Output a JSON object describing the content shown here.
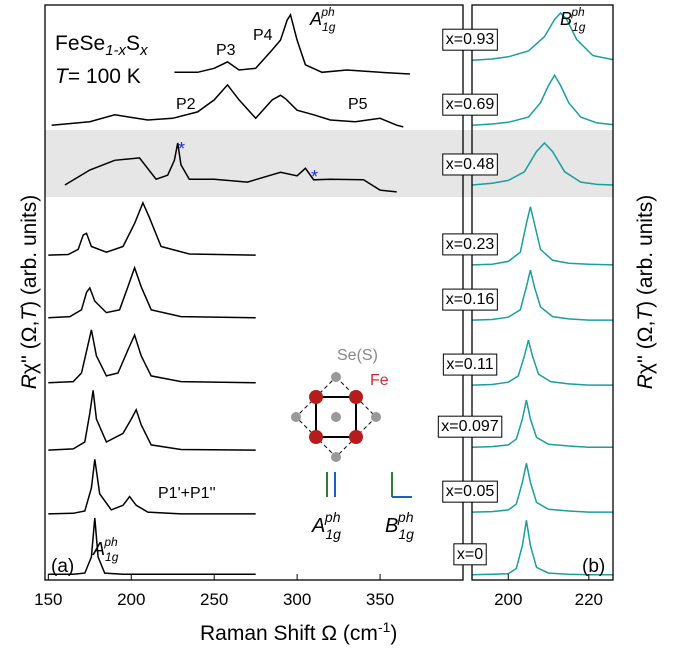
{
  "chart_data": [
    {
      "type": "line",
      "color": "#000000",
      "xlim": [
        148,
        400
      ],
      "xticks": [
        150,
        200,
        250,
        300,
        350
      ],
      "ylim": [
        0,
        10
      ],
      "series": [
        {
          "x": [
            150,
            165,
            172,
            176,
            178,
            180,
            184,
            195,
            210,
            230,
            250,
            275
          ],
          "values": [
            0.1,
            0.1,
            0.12,
            0.4,
            1.08,
            0.4,
            0.12,
            0.1,
            0.1,
            0.1,
            0.1,
            0.1
          ]
        },
        {
          "x": [
            150,
            165,
            172,
            176,
            178,
            181,
            188,
            195,
            199,
            203,
            210,
            230,
            275
          ],
          "values": [
            1.15,
            1.16,
            1.2,
            1.6,
            2.1,
            1.5,
            1.22,
            1.3,
            1.45,
            1.3,
            1.18,
            1.15,
            1.15
          ]
        },
        {
          "x": [
            150,
            165,
            172,
            175,
            177,
            179,
            185,
            195,
            200,
            203,
            206,
            212,
            230,
            275
          ],
          "values": [
            2.26,
            2.28,
            2.4,
            2.9,
            3.3,
            2.8,
            2.4,
            2.55,
            2.8,
            2.96,
            2.7,
            2.35,
            2.27,
            2.26
          ]
        },
        {
          "x": [
            150,
            165,
            170,
            174,
            176,
            179,
            185,
            192,
            198,
            202,
            206,
            212,
            230,
            275
          ],
          "values": [
            3.43,
            3.45,
            3.6,
            4.1,
            4.35,
            3.9,
            3.55,
            3.6,
            4.0,
            4.26,
            3.9,
            3.55,
            3.45,
            3.43
          ]
        },
        {
          "x": [
            150,
            163,
            170,
            173,
            175,
            178,
            185,
            193,
            198,
            202,
            206,
            212,
            230,
            275
          ],
          "values": [
            4.56,
            4.58,
            4.7,
            5.0,
            5.08,
            4.85,
            4.65,
            4.7,
            5.1,
            5.43,
            5.1,
            4.7,
            4.58,
            4.56
          ]
        },
        {
          "x": [
            150,
            162,
            168,
            171,
            173,
            176,
            185,
            195,
            202,
            207,
            211,
            218,
            235,
            275
          ],
          "values": [
            5.65,
            5.66,
            5.75,
            6.0,
            6.03,
            5.8,
            5.7,
            5.8,
            6.2,
            6.56,
            6.3,
            5.8,
            5.67,
            5.65
          ]
        },
        {
          "x": [
            160,
            175,
            190,
            205,
            215,
            222,
            226,
            228,
            230,
            235,
            250,
            270,
            290,
            300,
            305,
            310,
            320,
            340,
            350,
            360
          ],
          "values": [
            6.87,
            7.13,
            7.3,
            7.34,
            6.97,
            7.04,
            7.3,
            7.6,
            7.22,
            6.97,
            6.97,
            6.92,
            7.09,
            7.03,
            7.16,
            6.96,
            6.97,
            6.96,
            6.78,
            6.75
          ]
        },
        {
          "x": [
            152,
            175,
            190,
            210,
            225,
            240,
            250,
            258,
            265,
            275,
            285,
            290,
            293,
            300,
            310,
            320,
            335,
            350,
            360,
            364
          ],
          "values": [
            7.91,
            7.97,
            8.09,
            8.0,
            8.03,
            8.14,
            8.35,
            8.61,
            8.35,
            8.03,
            8.35,
            8.43,
            8.37,
            8.17,
            8.09,
            8.0,
            7.97,
            8.03,
            7.91,
            7.88
          ]
        },
        {
          "x": [
            226,
            240,
            250,
            258,
            265,
            275,
            285,
            290,
            294,
            296,
            300,
            305,
            315,
            330,
            350,
            368
          ],
          "values": [
            8.83,
            8.83,
            8.9,
            9.01,
            8.87,
            8.9,
            9.22,
            9.39,
            9.74,
            9.83,
            9.39,
            8.96,
            8.83,
            8.87,
            8.83,
            8.8
          ]
        }
      ]
    },
    {
      "type": "line",
      "color": "#1a9e9e",
      "xlim": [
        191,
        226
      ],
      "xticks": [
        200,
        220
      ],
      "ylim": [
        0,
        10
      ],
      "series": [
        {
          "name": "x=0",
          "x": [
            191,
            196,
            200,
            202,
            203.5,
            204.5,
            205.5,
            207,
            210,
            215,
            220,
            226
          ],
          "values": [
            0.09,
            0.1,
            0.11,
            0.2,
            0.6,
            1.04,
            0.6,
            0.22,
            0.12,
            0.1,
            0.09,
            0.09
          ]
        },
        {
          "name": "x=0.05",
          "x": [
            191,
            196,
            200,
            202,
            203.5,
            204.5,
            205.5,
            207,
            210,
            215,
            220,
            226
          ],
          "values": [
            1.18,
            1.19,
            1.22,
            1.32,
            1.7,
            2.03,
            1.7,
            1.35,
            1.23,
            1.2,
            1.18,
            1.18
          ]
        },
        {
          "name": "x=0.097",
          "x": [
            191,
            196,
            200,
            202,
            203.5,
            204.5,
            205.5,
            207,
            210,
            215,
            220,
            226
          ],
          "values": [
            2.31,
            2.32,
            2.35,
            2.45,
            2.8,
            3.13,
            2.8,
            2.48,
            2.36,
            2.33,
            2.31,
            2.31
          ]
        },
        {
          "name": "x=0.11",
          "x": [
            191,
            196,
            200,
            202.5,
            204,
            205,
            206,
            207.5,
            210.5,
            215,
            220,
            226
          ],
          "values": [
            3.39,
            3.4,
            3.44,
            3.55,
            3.9,
            4.17,
            3.9,
            3.58,
            3.45,
            3.41,
            3.39,
            3.39
          ]
        },
        {
          "name": "x=0.16",
          "x": [
            191,
            196,
            200,
            203,
            204.5,
            205.5,
            206.5,
            208,
            211,
            215,
            220,
            226
          ],
          "values": [
            4.52,
            4.53,
            4.57,
            4.7,
            5.1,
            5.39,
            5.1,
            4.75,
            4.58,
            4.54,
            4.52,
            4.52
          ]
        },
        {
          "name": "x=0.23",
          "x": [
            191,
            196,
            200,
            203,
            204.5,
            205.5,
            206.5,
            208,
            211,
            215,
            220,
            226
          ],
          "values": [
            5.48,
            5.49,
            5.54,
            5.7,
            6.2,
            6.49,
            6.2,
            5.75,
            5.56,
            5.51,
            5.49,
            5.48
          ]
        },
        {
          "name": "x=0.48",
          "x": [
            191,
            196,
            200,
            204,
            207,
            209,
            211,
            214,
            218,
            222,
            226
          ],
          "values": [
            6.87,
            6.9,
            6.95,
            7.1,
            7.45,
            7.6,
            7.45,
            7.1,
            6.92,
            6.88,
            6.87
          ]
        },
        {
          "name": "x=0.69",
          "x": [
            191,
            196,
            200,
            205,
            208,
            210,
            211.5,
            213,
            215,
            218,
            222,
            226
          ],
          "values": [
            7.91,
            7.93,
            7.96,
            8.05,
            8.3,
            8.6,
            8.78,
            8.6,
            8.3,
            8.05,
            7.95,
            7.92
          ]
        },
        {
          "name": "x=0.93",
          "x": [
            191,
            196,
            200,
            205,
            209,
            211.5,
            213,
            214.5,
            217,
            221,
            226
          ],
          "values": [
            9.04,
            9.06,
            9.1,
            9.2,
            9.45,
            9.75,
            9.86,
            9.75,
            9.4,
            9.12,
            9.05
          ]
        }
      ]
    }
  ],
  "annotations": {
    "formula": [
      "FeSe",
      "1-x",
      "S",
      "x"
    ],
    "temperature": [
      "T",
      "= 100 K"
    ],
    "mode_a": [
      "A",
      "1g",
      "ph"
    ],
    "mode_b": [
      "B",
      "1g",
      "ph"
    ],
    "mode_a_bottom": [
      "A",
      "1g",
      "ph"
    ],
    "peaks": [
      "P1'+P1''",
      "P2",
      "P3",
      "P4",
      "P5"
    ],
    "stars": [
      "*",
      "*"
    ],
    "panel_a": "(a)",
    "panel_b": "(b)",
    "y_label": [
      "R",
      "χ'' (Ω,",
      "T",
      ") (arb. units)"
    ],
    "x_label": [
      "Raman Shift Ω (cm",
      "-1",
      ")"
    ],
    "inset": {
      "se": "Se(S)",
      "fe": "Fe",
      "a": [
        "A",
        "1g",
        "ph"
      ],
      "b": [
        "B",
        "1g",
        "ph"
      ]
    }
  }
}
